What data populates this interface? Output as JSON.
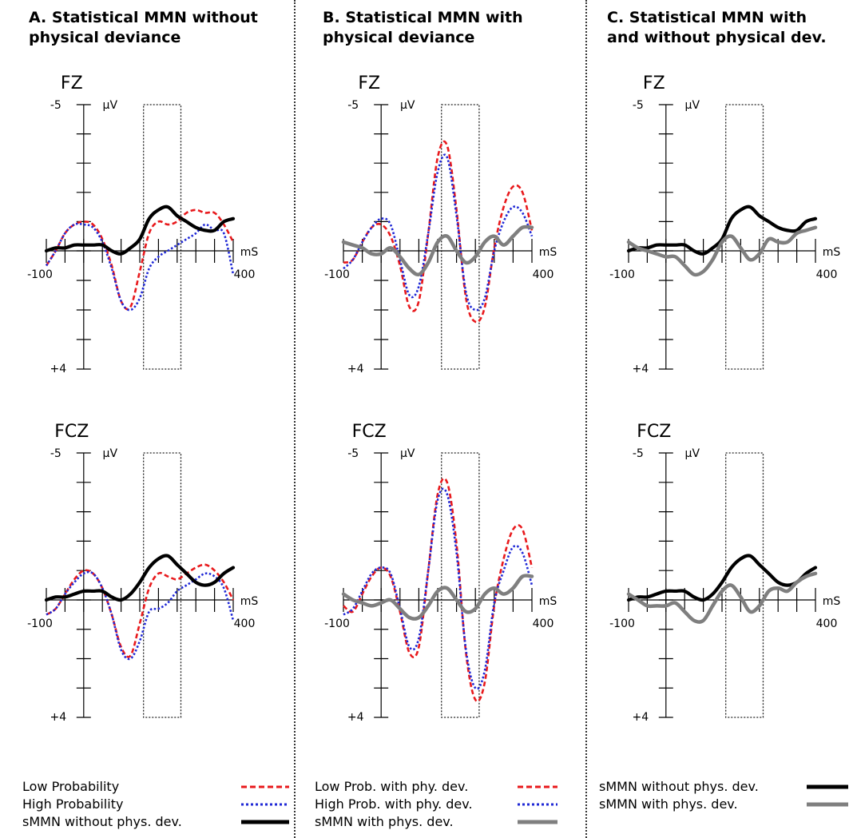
{
  "columns": [
    {
      "title_lines": [
        "A. Statistical MMN without",
        "physical deviance"
      ]
    },
    {
      "title_lines": [
        "B. Statistical MMN with",
        "physical deviance"
      ]
    },
    {
      "title_lines": [
        "C. Statistical MMN with",
        "and without physical dev."
      ]
    }
  ],
  "legends": [
    [
      {
        "label": "Low Probability",
        "style": "red-dashed"
      },
      {
        "label": "High Probability",
        "style": "blue-dotted"
      },
      {
        "label": "sMMN without phys. dev.",
        "style": "black-solid"
      }
    ],
    [
      {
        "label": "Low Prob. with phy. dev.",
        "style": "red-dashed"
      },
      {
        "label": "High Prob. with phy. dev.",
        "style": "blue-dotted"
      },
      {
        "label": "sMMN with phys. dev.",
        "style": "gray-solid"
      }
    ],
    [
      {
        "label": "sMMN without phys. dev.",
        "style": "black-solid"
      },
      {
        "label": "sMMN with phys. dev.",
        "style": "gray-solid"
      }
    ]
  ],
  "colors": {
    "red": "#e8191c",
    "blue": "#1f28d6",
    "black": "#000000",
    "gray": "#7f7f7f"
  },
  "chart_data": [
    {
      "type": "line",
      "panel": "A",
      "electrode": "FZ",
      "xlim": [
        -100,
        400
      ],
      "ylim": [
        -5,
        4
      ],
      "x_tick_labels": [
        "-100",
        "400"
      ],
      "x_unit": "mS",
      "y_tick_labels": [
        "-5",
        "+4"
      ],
      "y_unit": "µV",
      "highlight_window": [
        160,
        260
      ],
      "x": [
        -100,
        -75,
        -50,
        -25,
        0,
        25,
        50,
        75,
        100,
        125,
        150,
        175,
        200,
        225,
        250,
        275,
        300,
        325,
        350,
        375,
        400
      ],
      "series": [
        {
          "name": "Low Probability",
          "color": "red",
          "style": "dashed",
          "values": [
            0.5,
            0.0,
            -0.6,
            -0.9,
            -1.0,
            -0.9,
            -0.4,
            0.5,
            1.7,
            1.9,
            0.7,
            -0.6,
            -1.0,
            -0.9,
            -1.0,
            -1.3,
            -1.4,
            -1.3,
            -1.3,
            -0.9,
            -0.3
          ]
        },
        {
          "name": "High Probability",
          "color": "blue",
          "style": "dotted",
          "values": [
            0.5,
            0.0,
            -0.6,
            -0.9,
            -0.9,
            -0.8,
            -0.3,
            0.6,
            1.7,
            2.0,
            1.6,
            0.6,
            0.2,
            0.0,
            -0.2,
            -0.4,
            -0.6,
            -0.9,
            -0.7,
            -0.6,
            0.8
          ]
        },
        {
          "name": "sMMN without phys. dev.",
          "color": "black",
          "style": "solid",
          "values": [
            0.0,
            -0.1,
            -0.1,
            -0.2,
            -0.2,
            -0.2,
            -0.2,
            0.0,
            0.1,
            -0.1,
            -0.4,
            -1.1,
            -1.4,
            -1.5,
            -1.2,
            -1.0,
            -0.8,
            -0.7,
            -0.7,
            -1.0,
            -1.1
          ]
        }
      ]
    },
    {
      "type": "line",
      "panel": "A",
      "electrode": "FCZ",
      "xlim": [
        -100,
        400
      ],
      "ylim": [
        -5,
        4
      ],
      "x_tick_labels": [
        "-100",
        "400"
      ],
      "x_unit": "mS",
      "y_tick_labels": [
        "-5",
        "+4"
      ],
      "y_unit": "µV",
      "highlight_window": [
        160,
        260
      ],
      "x": [
        -100,
        -75,
        -50,
        -25,
        0,
        25,
        50,
        75,
        100,
        125,
        150,
        175,
        200,
        225,
        250,
        275,
        300,
        325,
        350,
        375,
        400
      ],
      "series": [
        {
          "name": "Low Probability",
          "color": "red",
          "style": "dashed",
          "values": [
            0.5,
            0.3,
            -0.2,
            -0.7,
            -1.0,
            -0.9,
            -0.4,
            0.5,
            1.6,
            1.9,
            0.8,
            -0.4,
            -0.9,
            -0.8,
            -0.7,
            -0.9,
            -1.1,
            -1.2,
            -1.0,
            -0.6,
            0.0
          ]
        },
        {
          "name": "High Probability",
          "color": "blue",
          "style": "dotted",
          "values": [
            0.5,
            0.3,
            -0.2,
            -0.6,
            -0.9,
            -0.9,
            -0.4,
            0.5,
            1.7,
            2.0,
            1.4,
            0.4,
            0.3,
            0.1,
            -0.3,
            -0.5,
            -0.7,
            -0.9,
            -0.8,
            -0.4,
            0.7
          ]
        },
        {
          "name": "sMMN without phys. dev.",
          "color": "black",
          "style": "solid",
          "values": [
            0.0,
            -0.1,
            -0.1,
            -0.2,
            -0.3,
            -0.3,
            -0.3,
            -0.1,
            0.0,
            -0.2,
            -0.6,
            -1.1,
            -1.4,
            -1.5,
            -1.2,
            -0.9,
            -0.6,
            -0.5,
            -0.6,
            -0.9,
            -1.1
          ]
        }
      ]
    },
    {
      "type": "line",
      "panel": "B",
      "electrode": "FZ",
      "xlim": [
        -100,
        400
      ],
      "ylim": [
        -5,
        4
      ],
      "x_tick_labels": [
        "-100",
        "400"
      ],
      "x_unit": "mS",
      "y_tick_labels": [
        "-5",
        "+4"
      ],
      "y_unit": "µV",
      "highlight_window": [
        160,
        260
      ],
      "x": [
        -100,
        -75,
        -50,
        -25,
        0,
        25,
        50,
        75,
        100,
        125,
        150,
        175,
        200,
        225,
        250,
        275,
        300,
        325,
        350,
        375,
        400
      ],
      "series": [
        {
          "name": "Low Prob. with phy. dev.",
          "color": "red",
          "style": "dashed",
          "values": [
            0.4,
            0.3,
            -0.3,
            -0.8,
            -0.9,
            -0.5,
            0.5,
            1.9,
            1.7,
            -0.6,
            -3.2,
            -3.6,
            -1.4,
            1.6,
            2.4,
            1.9,
            -0.1,
            -1.5,
            -2.2,
            -2.0,
            -0.7
          ]
        },
        {
          "name": "High Prob. with phy. dev.",
          "color": "blue",
          "style": "dotted",
          "values": [
            0.6,
            0.3,
            -0.3,
            -0.8,
            -1.1,
            -0.9,
            0.3,
            1.5,
            1.2,
            -0.6,
            -2.7,
            -3.2,
            -1.2,
            1.4,
            2.0,
            1.6,
            0.0,
            -1.0,
            -1.5,
            -1.3,
            -0.5
          ]
        },
        {
          "name": "sMMN with phys. dev.",
          "color": "gray",
          "style": "solid",
          "values": [
            -0.3,
            -0.2,
            -0.1,
            0.1,
            0.1,
            -0.1,
            0.2,
            0.6,
            0.8,
            0.4,
            -0.3,
            -0.5,
            0.0,
            0.4,
            0.2,
            -0.3,
            -0.5,
            -0.2,
            -0.5,
            -0.8,
            -0.8
          ]
        }
      ]
    },
    {
      "type": "line",
      "panel": "B",
      "electrode": "FCZ",
      "xlim": [
        -100,
        400
      ],
      "ylim": [
        -5,
        4
      ],
      "x_tick_labels": [
        "-100",
        "400"
      ],
      "x_unit": "mS",
      "y_tick_labels": [
        "-5",
        "+4"
      ],
      "y_unit": "µV",
      "highlight_window": [
        160,
        260
      ],
      "x": [
        -100,
        -75,
        -50,
        -25,
        0,
        25,
        50,
        75,
        100,
        125,
        150,
        175,
        200,
        225,
        250,
        275,
        300,
        325,
        350,
        375,
        400
      ],
      "series": [
        {
          "name": "Low Prob. with phy. dev.",
          "color": "red",
          "style": "dashed",
          "values": [
            0.2,
            0.4,
            -0.2,
            -0.8,
            -1.1,
            -0.8,
            0.4,
            1.8,
            1.6,
            -1.0,
            -3.6,
            -4.0,
            -1.9,
            1.8,
            3.4,
            2.8,
            0.2,
            -1.4,
            -2.4,
            -2.4,
            -1.1
          ]
        },
        {
          "name": "High Prob. with phy. dev.",
          "color": "blue",
          "style": "dotted",
          "values": [
            0.5,
            0.3,
            -0.3,
            -0.9,
            -1.1,
            -0.9,
            0.3,
            1.6,
            1.3,
            -1.0,
            -3.4,
            -3.6,
            -1.6,
            1.7,
            3.0,
            2.4,
            0.1,
            -1.0,
            -1.8,
            -1.6,
            -0.5
          ]
        },
        {
          "name": "sMMN with phys. dev.",
          "color": "gray",
          "style": "solid",
          "values": [
            -0.2,
            0.0,
            0.1,
            0.2,
            0.1,
            0.0,
            0.3,
            0.6,
            0.6,
            0.2,
            -0.3,
            -0.4,
            0.0,
            0.4,
            0.3,
            -0.2,
            -0.4,
            -0.2,
            -0.4,
            -0.8,
            -0.8
          ]
        }
      ]
    },
    {
      "type": "line",
      "panel": "C",
      "electrode": "FZ",
      "xlim": [
        -100,
        400
      ],
      "ylim": [
        -5,
        4
      ],
      "x_tick_labels": [
        "-100",
        "400"
      ],
      "x_unit": "mS",
      "y_tick_labels": [
        "-5",
        "+4"
      ],
      "y_unit": "µV",
      "highlight_window": [
        160,
        260
      ],
      "x": [
        -100,
        -75,
        -50,
        -25,
        0,
        25,
        50,
        75,
        100,
        125,
        150,
        175,
        200,
        225,
        250,
        275,
        300,
        325,
        350,
        375,
        400
      ],
      "series": [
        {
          "name": "sMMN without phys. dev.",
          "color": "black",
          "style": "solid",
          "values": [
            0.0,
            -0.1,
            -0.1,
            -0.2,
            -0.2,
            -0.2,
            -0.2,
            0.0,
            0.1,
            -0.1,
            -0.4,
            -1.1,
            -1.4,
            -1.5,
            -1.2,
            -1.0,
            -0.8,
            -0.7,
            -0.7,
            -1.0,
            -1.1
          ]
        },
        {
          "name": "sMMN with phys. dev.",
          "color": "gray",
          "style": "solid",
          "values": [
            -0.3,
            -0.1,
            0.0,
            0.1,
            0.2,
            0.2,
            0.5,
            0.8,
            0.7,
            0.3,
            -0.3,
            -0.5,
            -0.1,
            0.3,
            0.1,
            -0.4,
            -0.3,
            -0.3,
            -0.6,
            -0.7,
            -0.8
          ]
        }
      ]
    },
    {
      "type": "line",
      "panel": "C",
      "electrode": "FCZ",
      "xlim": [
        -100,
        400
      ],
      "ylim": [
        -5,
        4
      ],
      "x_tick_labels": [
        "-100",
        "400"
      ],
      "x_unit": "mS",
      "y_tick_labels": [
        "-5",
        "+4"
      ],
      "y_unit": "µV",
      "highlight_window": [
        160,
        260
      ],
      "x": [
        -100,
        -75,
        -50,
        -25,
        0,
        25,
        50,
        75,
        100,
        125,
        150,
        175,
        200,
        225,
        250,
        275,
        300,
        325,
        350,
        375,
        400
      ],
      "series": [
        {
          "name": "sMMN without phys. dev.",
          "color": "black",
          "style": "solid",
          "values": [
            0.0,
            -0.1,
            -0.1,
            -0.2,
            -0.3,
            -0.3,
            -0.3,
            -0.1,
            0.0,
            -0.2,
            -0.6,
            -1.1,
            -1.4,
            -1.5,
            -1.2,
            -0.9,
            -0.6,
            -0.5,
            -0.6,
            -0.9,
            -1.1
          ]
        },
        {
          "name": "sMMN with phys. dev.",
          "color": "gray",
          "style": "solid",
          "values": [
            -0.2,
            0.0,
            0.2,
            0.2,
            0.2,
            0.1,
            0.4,
            0.7,
            0.7,
            0.2,
            -0.3,
            -0.5,
            -0.1,
            0.4,
            0.2,
            -0.3,
            -0.4,
            -0.3,
            -0.6,
            -0.8,
            -0.9
          ]
        }
      ]
    }
  ]
}
